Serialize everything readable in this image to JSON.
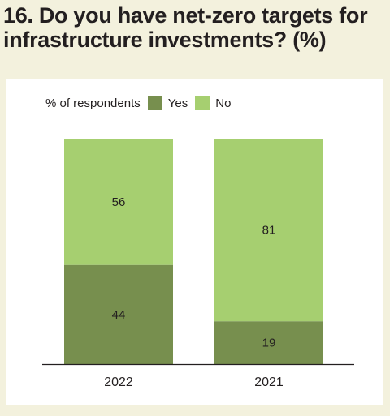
{
  "title": "16. Do you have net-zero targets for infrastructure investments? (%)",
  "legend": {
    "label": "% of respondents",
    "items": [
      {
        "name": "Yes",
        "color": "#778f4e"
      },
      {
        "name": "No",
        "color": "#a6cf70"
      }
    ]
  },
  "chart_data": {
    "type": "bar",
    "stacked": true,
    "categories": [
      "2022",
      "2021"
    ],
    "series": [
      {
        "name": "Yes",
        "values": [
          44,
          19
        ],
        "color": "#778f4e"
      },
      {
        "name": "No",
        "values": [
          56,
          81
        ],
        "color": "#a6cf70"
      }
    ],
    "ylabel": "% of respondents",
    "ylim": [
      0,
      100
    ],
    "grid": false,
    "legend_position": "top-left"
  }
}
